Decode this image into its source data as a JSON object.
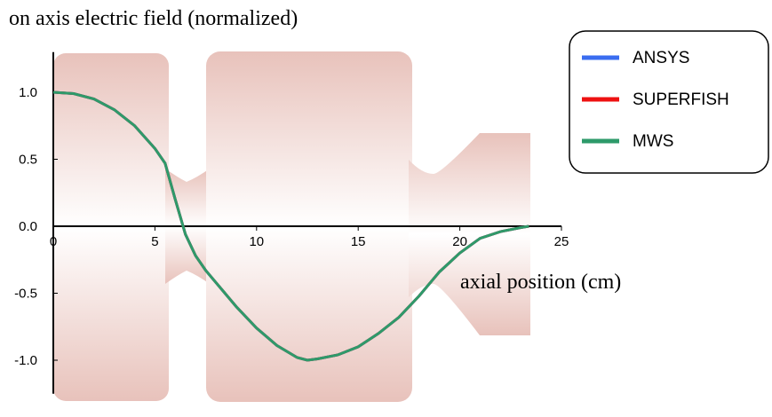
{
  "chart_data": {
    "type": "line",
    "title": "on axis electric field (normalized)",
    "x_label": "axial position (cm)",
    "x": [
      0,
      1,
      2,
      3,
      4,
      5,
      5.5,
      6,
      6.5,
      7,
      7.5,
      8,
      9,
      10,
      11,
      12,
      12.5,
      13,
      14,
      15,
      16,
      17,
      18,
      19,
      20,
      21,
      22,
      23,
      23.4
    ],
    "series": [
      {
        "name": "ANSYS",
        "color": "#3a6df0",
        "values": [
          1.0,
          0.99,
          0.95,
          0.87,
          0.75,
          0.58,
          0.47,
          0.2,
          -0.06,
          -0.22,
          -0.33,
          -0.42,
          -0.6,
          -0.76,
          -0.89,
          -0.98,
          -1.0,
          -0.99,
          -0.96,
          -0.9,
          -0.8,
          -0.68,
          -0.52,
          -0.34,
          -0.2,
          -0.09,
          -0.04,
          -0.01,
          0
        ]
      },
      {
        "name": "SUPERFISH",
        "color": "#ee1111",
        "values": [
          1.0,
          0.99,
          0.95,
          0.87,
          0.75,
          0.58,
          0.47,
          0.2,
          -0.06,
          -0.22,
          -0.33,
          -0.42,
          -0.6,
          -0.76,
          -0.89,
          -0.98,
          -1.0,
          -0.99,
          -0.96,
          -0.9,
          -0.8,
          -0.68,
          -0.52,
          -0.34,
          -0.2,
          -0.09,
          -0.04,
          -0.01,
          0
        ]
      },
      {
        "name": "MWS",
        "color": "#2e9a6a",
        "values": [
          1.0,
          0.99,
          0.95,
          0.87,
          0.75,
          0.58,
          0.47,
          0.2,
          -0.06,
          -0.22,
          -0.33,
          -0.42,
          -0.6,
          -0.76,
          -0.89,
          -0.98,
          -1.0,
          -0.99,
          -0.96,
          -0.9,
          -0.8,
          -0.68,
          -0.52,
          -0.34,
          -0.2,
          -0.09,
          -0.04,
          -0.01,
          0
        ]
      }
    ],
    "xlim": [
      0,
      25
    ],
    "xticks": [
      0,
      5,
      10,
      15,
      20,
      25
    ],
    "ylim": [
      -1.25,
      1.3
    ],
    "yticks": [
      {
        "value": 1,
        "label": "1.0"
      },
      {
        "value": 0.5,
        "label": "0.5"
      },
      {
        "value": 0,
        "label": "0.0"
      },
      {
        "value": -0.5,
        "label": "-0.5"
      },
      {
        "value": -1,
        "label": "-1.0"
      }
    ]
  }
}
